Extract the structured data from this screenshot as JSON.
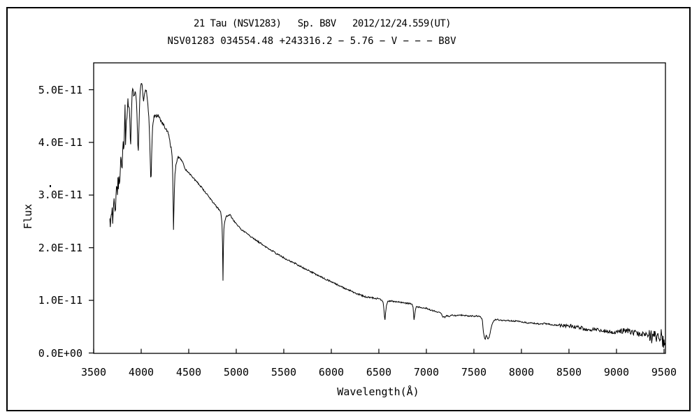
{
  "header": {
    "line1": "21 Tau (NSV1283)   Sp. B8V   2012/12/24.559(UT)",
    "line2": "NSV01283 034554.48 +243316.2 − 5.76 − V − − − B8V"
  },
  "colors": {
    "background": "#ffffff",
    "line": "#000000",
    "frame": "#000000",
    "text": "#000000"
  },
  "chart_data": {
    "type": "line",
    "title": "21 Tau (NSV1283)   Sp. B8V   2012/12/24.559(UT)",
    "subtitle": "NSV01283 034554.48 +243316.2 − 5.76 − V − − − B8V",
    "xlabel": "Wavelength(Å)",
    "ylabel": "Flux",
    "xlim": [
      3500,
      9515
    ],
    "ylim_e11": [
      0,
      5.51
    ],
    "grid": false,
    "legend": "none",
    "x_ticks": [
      3500,
      4000,
      4500,
      5000,
      5500,
      6000,
      6500,
      7000,
      7500,
      8000,
      8500,
      9000,
      9500
    ],
    "y_tick_values_e11": [
      0,
      1,
      2,
      3,
      4,
      5
    ],
    "y_tick_labels": [
      "0.0E+00",
      "1.0E-11",
      "2.0E-11",
      "3.0E-11",
      "4.0E-11",
      "5.0E-11"
    ],
    "flux_unit_scale": "1E-11",
    "features": {
      "absorption_lines_angstrom": {
        "H10": 3798,
        "H9": 3835,
        "H8": 3889,
        "Heps_CaH": 3970,
        "HeI": 4026,
        "Hdelta": 4102,
        "Hgamma": 4340,
        "Hbeta": 4861,
        "Halpha": 6563,
        "O2_B_band": 6870,
        "H2O_band": 7190,
        "O2_A_band": 7620
      },
      "peak_flux_e11": 5.15,
      "peak_wavelength": 4006
    },
    "points": [
      [
        3670,
        2.55
      ],
      [
        3676,
        2.35
      ],
      [
        3682,
        2.72
      ],
      [
        3688,
        2.48
      ],
      [
        3694,
        2.85
      ],
      [
        3700,
        2.44
      ],
      [
        3708,
        2.8
      ],
      [
        3716,
        2.97
      ],
      [
        3722,
        2.7
      ],
      [
        3728,
        2.64
      ],
      [
        3736,
        3.05
      ],
      [
        3743,
        3.21
      ],
      [
        3749,
        2.95
      ],
      [
        3755,
        3.32
      ],
      [
        3761,
        3.1
      ],
      [
        3766,
        3.43
      ],
      [
        3772,
        3.08
      ],
      [
        3779,
        3.45
      ],
      [
        3787,
        3.81
      ],
      [
        3793,
        3.6
      ],
      [
        3799,
        3.48
      ],
      [
        3806,
        3.92
      ],
      [
        3812,
        4.08
      ],
      [
        3818,
        3.72
      ],
      [
        3826,
        4.45
      ],
      [
        3830,
        4.7
      ],
      [
        3835,
        3.92
      ],
      [
        3842,
        4.3
      ],
      [
        3848,
        4.55
      ],
      [
        3852,
        4.35
      ],
      [
        3858,
        4.89
      ],
      [
        3866,
        4.62
      ],
      [
        3874,
        4.72
      ],
      [
        3882,
        4.35
      ],
      [
        3886,
        4.0
      ],
      [
        3890,
        3.95
      ],
      [
        3896,
        4.45
      ],
      [
        3906,
        5.0
      ],
      [
        3914,
        5.05
      ],
      [
        3922,
        4.85
      ],
      [
        3930,
        4.92
      ],
      [
        3938,
        5.0
      ],
      [
        3946,
        4.88
      ],
      [
        3954,
        4.62
      ],
      [
        3962,
        4.1
      ],
      [
        3966,
        3.92
      ],
      [
        3970,
        3.85
      ],
      [
        3976,
        4.3
      ],
      [
        3984,
        4.8
      ],
      [
        3992,
        5.05
      ],
      [
        3998,
        5.1
      ],
      [
        4006,
        5.15
      ],
      [
        4014,
        4.96
      ],
      [
        4026,
        4.78
      ],
      [
        4036,
        4.94
      ],
      [
        4046,
        5.02
      ],
      [
        4056,
        4.97
      ],
      [
        4068,
        4.78
      ],
      [
        4080,
        4.48
      ],
      [
        4090,
        4.0
      ],
      [
        4096,
        3.62
      ],
      [
        4100,
        3.32
      ],
      [
        4104,
        3.3
      ],
      [
        4110,
        3.78
      ],
      [
        4118,
        4.22
      ],
      [
        4126,
        4.42
      ],
      [
        4136,
        4.5
      ],
      [
        4155,
        4.51
      ],
      [
        4176,
        4.52
      ],
      [
        4198,
        4.45
      ],
      [
        4220,
        4.38
      ],
      [
        4248,
        4.28
      ],
      [
        4276,
        4.22
      ],
      [
        4300,
        4.05
      ],
      [
        4315,
        3.88
      ],
      [
        4327,
        3.72
      ],
      [
        4334,
        3.1
      ],
      [
        4340,
        2.35
      ],
      [
        4346,
        2.9
      ],
      [
        4356,
        3.42
      ],
      [
        4366,
        3.58
      ],
      [
        4380,
        3.68
      ],
      [
        4394,
        3.73
      ],
      [
        4410,
        3.7
      ],
      [
        4428,
        3.65
      ],
      [
        4448,
        3.57
      ],
      [
        4468,
        3.48
      ],
      [
        4490,
        3.45
      ],
      [
        4515,
        3.39
      ],
      [
        4545,
        3.33
      ],
      [
        4575,
        3.27
      ],
      [
        4610,
        3.2
      ],
      [
        4650,
        3.11
      ],
      [
        4690,
        3.02
      ],
      [
        4730,
        2.92
      ],
      [
        4770,
        2.83
      ],
      [
        4810,
        2.74
      ],
      [
        4838,
        2.68
      ],
      [
        4850,
        2.45
      ],
      [
        4856,
        2.0
      ],
      [
        4860,
        1.37
      ],
      [
        4864,
        1.9
      ],
      [
        4870,
        2.35
      ],
      [
        4878,
        2.5
      ],
      [
        4890,
        2.58
      ],
      [
        4898,
        2.6
      ],
      [
        4914,
        2.61
      ],
      [
        4932,
        2.63
      ],
      [
        4952,
        2.57
      ],
      [
        4976,
        2.51
      ],
      [
        5000,
        2.45
      ],
      [
        5030,
        2.39
      ],
      [
        5060,
        2.34
      ],
      [
        5100,
        2.28
      ],
      [
        5140,
        2.23
      ],
      [
        5180,
        2.18
      ],
      [
        5220,
        2.13
      ],
      [
        5260,
        2.08
      ],
      [
        5300,
        2.03
      ],
      [
        5340,
        1.98
      ],
      [
        5380,
        1.94
      ],
      [
        5420,
        1.89
      ],
      [
        5460,
        1.85
      ],
      [
        5500,
        1.81
      ],
      [
        5540,
        1.77
      ],
      [
        5580,
        1.73
      ],
      [
        5620,
        1.7
      ],
      [
        5660,
        1.66
      ],
      [
        5700,
        1.62
      ],
      [
        5740,
        1.58
      ],
      [
        5780,
        1.55
      ],
      [
        5820,
        1.51
      ],
      [
        5860,
        1.47
      ],
      [
        5900,
        1.44
      ],
      [
        5940,
        1.4
      ],
      [
        5980,
        1.37
      ],
      [
        6020,
        1.33
      ],
      [
        6060,
        1.3
      ],
      [
        6100,
        1.26
      ],
      [
        6140,
        1.23
      ],
      [
        6180,
        1.2
      ],
      [
        6220,
        1.17
      ],
      [
        6260,
        1.13
      ],
      [
        6300,
        1.11
      ],
      [
        6340,
        1.08
      ],
      [
        6380,
        1.06
      ],
      [
        6420,
        1.05
      ],
      [
        6460,
        1.04
      ],
      [
        6500,
        1.03
      ],
      [
        6528,
        1.01
      ],
      [
        6545,
        0.95
      ],
      [
        6552,
        0.85
      ],
      [
        6558,
        0.72
      ],
      [
        6565,
        0.63
      ],
      [
        6570,
        0.74
      ],
      [
        6578,
        0.88
      ],
      [
        6590,
        0.97
      ],
      [
        6605,
        0.99
      ],
      [
        6620,
        0.99
      ],
      [
        6660,
        0.98
      ],
      [
        6700,
        0.97
      ],
      [
        6740,
        0.96
      ],
      [
        6780,
        0.95
      ],
      [
        6820,
        0.94
      ],
      [
        6848,
        0.93
      ],
      [
        6860,
        0.88
      ],
      [
        6866,
        0.72
      ],
      [
        6870,
        0.63
      ],
      [
        6876,
        0.72
      ],
      [
        6884,
        0.82
      ],
      [
        6895,
        0.87
      ],
      [
        6920,
        0.87
      ],
      [
        6960,
        0.86
      ],
      [
        7000,
        0.85
      ],
      [
        7040,
        0.82
      ],
      [
        7080,
        0.8
      ],
      [
        7120,
        0.78
      ],
      [
        7155,
        0.75
      ],
      [
        7175,
        0.69
      ],
      [
        7195,
        0.67
      ],
      [
        7215,
        0.71
      ],
      [
        7235,
        0.69
      ],
      [
        7258,
        0.72
      ],
      [
        7290,
        0.71
      ],
      [
        7330,
        0.71
      ],
      [
        7370,
        0.72
      ],
      [
        7410,
        0.71
      ],
      [
        7450,
        0.7
      ],
      [
        7490,
        0.7
      ],
      [
        7530,
        0.7
      ],
      [
        7565,
        0.69
      ],
      [
        7588,
        0.64
      ],
      [
        7598,
        0.42
      ],
      [
        7608,
        0.3
      ],
      [
        7618,
        0.26
      ],
      [
        7630,
        0.34
      ],
      [
        7642,
        0.28
      ],
      [
        7654,
        0.27
      ],
      [
        7666,
        0.33
      ],
      [
        7678,
        0.45
      ],
      [
        7692,
        0.55
      ],
      [
        7706,
        0.6
      ],
      [
        7722,
        0.63
      ],
      [
        7740,
        0.64
      ],
      [
        7760,
        0.63
      ],
      [
        7800,
        0.62
      ],
      [
        7840,
        0.62
      ],
      [
        7880,
        0.61
      ],
      [
        7920,
        0.61
      ],
      [
        7960,
        0.6
      ],
      [
        8000,
        0.59
      ],
      [
        8040,
        0.58
      ],
      [
        8080,
        0.57
      ],
      [
        8120,
        0.57
      ],
      [
        8160,
        0.56
      ],
      [
        8200,
        0.55
      ],
      [
        8240,
        0.56
      ],
      [
        8280,
        0.55
      ],
      [
        8320,
        0.54
      ],
      [
        8360,
        0.53
      ],
      [
        8400,
        0.53
      ],
      [
        8440,
        0.52
      ],
      [
        8480,
        0.52
      ],
      [
        8520,
        0.51
      ],
      [
        8560,
        0.5
      ],
      [
        8600,
        0.49
      ],
      [
        8640,
        0.47
      ],
      [
        8670,
        0.44
      ],
      [
        8700,
        0.46
      ],
      [
        8724,
        0.43
      ],
      [
        8760,
        0.46
      ],
      [
        8800,
        0.45
      ],
      [
        8840,
        0.43
      ],
      [
        8880,
        0.42
      ],
      [
        8920,
        0.4
      ],
      [
        8960,
        0.38
      ],
      [
        9000,
        0.38
      ],
      [
        9040,
        0.41
      ],
      [
        9080,
        0.43
      ],
      [
        9120,
        0.42
      ],
      [
        9160,
        0.4
      ],
      [
        9200,
        0.38
      ],
      [
        9240,
        0.36
      ],
      [
        9280,
        0.35
      ],
      [
        9320,
        0.34
      ],
      [
        9360,
        0.32
      ],
      [
        9400,
        0.3
      ],
      [
        9440,
        0.28
      ],
      [
        9470,
        0.33
      ],
      [
        9490,
        0.22
      ],
      [
        9515,
        0.24
      ]
    ],
    "noise_regions": [
      [
        3670,
        4400,
        0.035
      ],
      [
        4400,
        6500,
        0.015
      ],
      [
        6500,
        8400,
        0.013
      ],
      [
        8400,
        9000,
        0.035
      ],
      [
        9000,
        9340,
        0.05
      ],
      [
        9340,
        9520,
        0.13
      ]
    ]
  }
}
